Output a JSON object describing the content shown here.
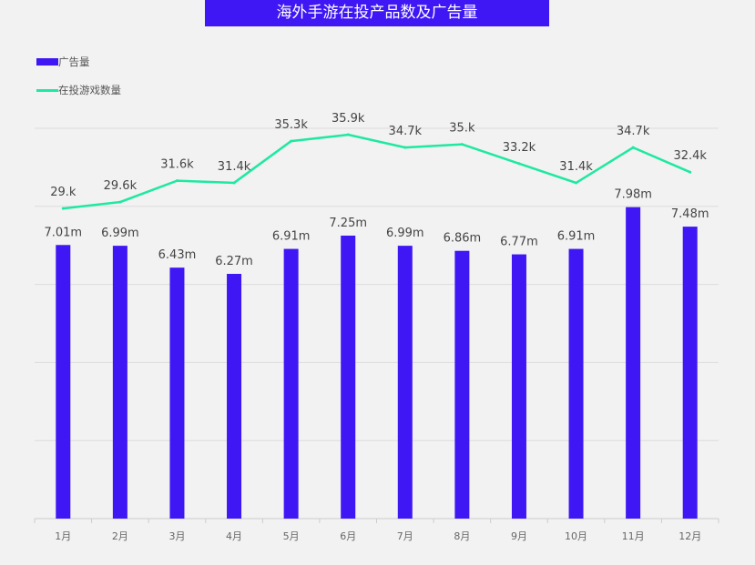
{
  "chart_data": {
    "type": "bar",
    "title": "海外手游在投产品数及广告量",
    "categories": [
      "1月",
      "2月",
      "3月",
      "4月",
      "5月",
      "6月",
      "7月",
      "8月",
      "9月",
      "10月",
      "11月",
      "12月"
    ],
    "series": [
      {
        "name": "广告量",
        "type": "bar",
        "color": "#3f17f5",
        "values": [
          7.01,
          6.99,
          6.43,
          6.27,
          6.91,
          7.25,
          6.99,
          6.86,
          6.77,
          6.91,
          7.98,
          7.48
        ],
        "labels": [
          "7.01m",
          "6.99m",
          "6.43m",
          "6.27m",
          "6.91m",
          "7.25m",
          "6.99m",
          "6.86m",
          "6.77m",
          "6.91m",
          "7.98m",
          "7.48m"
        ],
        "unit": "m",
        "axis": "left",
        "ylim": [
          0,
          10
        ]
      },
      {
        "name": "在投游戏数量",
        "type": "line",
        "color": "#1de9a0",
        "values": [
          29.0,
          29.6,
          31.6,
          31.4,
          35.3,
          35.9,
          34.7,
          35.0,
          33.2,
          31.4,
          34.7,
          32.4
        ],
        "labels": [
          "29.k",
          "29.6k",
          "31.6k",
          "31.4k",
          "35.3k",
          "35.9k",
          "34.7k",
          "35.k",
          "33.2k",
          "31.4k",
          "34.7k",
          "32.4k"
        ],
        "unit": "k",
        "axis": "right",
        "ylim": [
          0,
          36.5
        ]
      }
    ],
    "grid": true,
    "legend": "top-left"
  }
}
